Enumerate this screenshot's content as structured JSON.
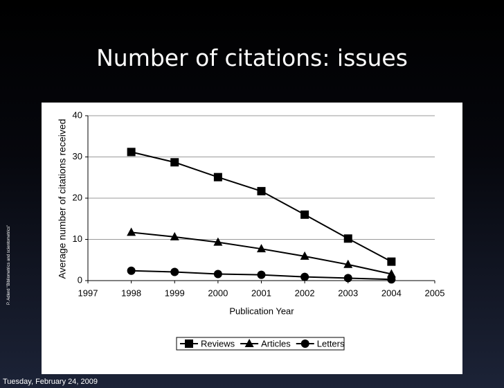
{
  "slide": {
    "title": "Number of citations: issues",
    "side_note": "P. Adlerd \"Bibliometrics and scientometrics\"",
    "footer_date": "Tuesday, February 24, 2009"
  },
  "chart_data": {
    "type": "line",
    "x_label": "Publication Year",
    "y_label": "Average number of citations received",
    "x": [
      1998,
      1999,
      2000,
      2001,
      2002,
      2003,
      2004
    ],
    "series": [
      {
        "name": "Reviews",
        "color": "#000000",
        "marker": "square",
        "values": [
          31.2,
          28.7,
          25.1,
          21.7,
          16.0,
          10.2,
          4.6
        ]
      },
      {
        "name": "Articles",
        "color": "#000000",
        "marker": "triangle",
        "values": [
          11.7,
          10.6,
          9.3,
          7.7,
          5.9,
          3.9,
          1.6
        ]
      },
      {
        "name": "Letters",
        "color": "#000000",
        "marker": "circle",
        "values": [
          2.4,
          2.1,
          1.6,
          1.4,
          0.9,
          0.6,
          0.3
        ]
      }
    ],
    "xlim": [
      1997,
      2005
    ],
    "xticks": [
      1997,
      1998,
      1999,
      2000,
      2001,
      2002,
      2003,
      2004,
      2005
    ],
    "ylim": [
      0,
      40
    ],
    "yticks": [
      0,
      10,
      20,
      30,
      40
    ],
    "grid": true,
    "legend": "bottom"
  }
}
